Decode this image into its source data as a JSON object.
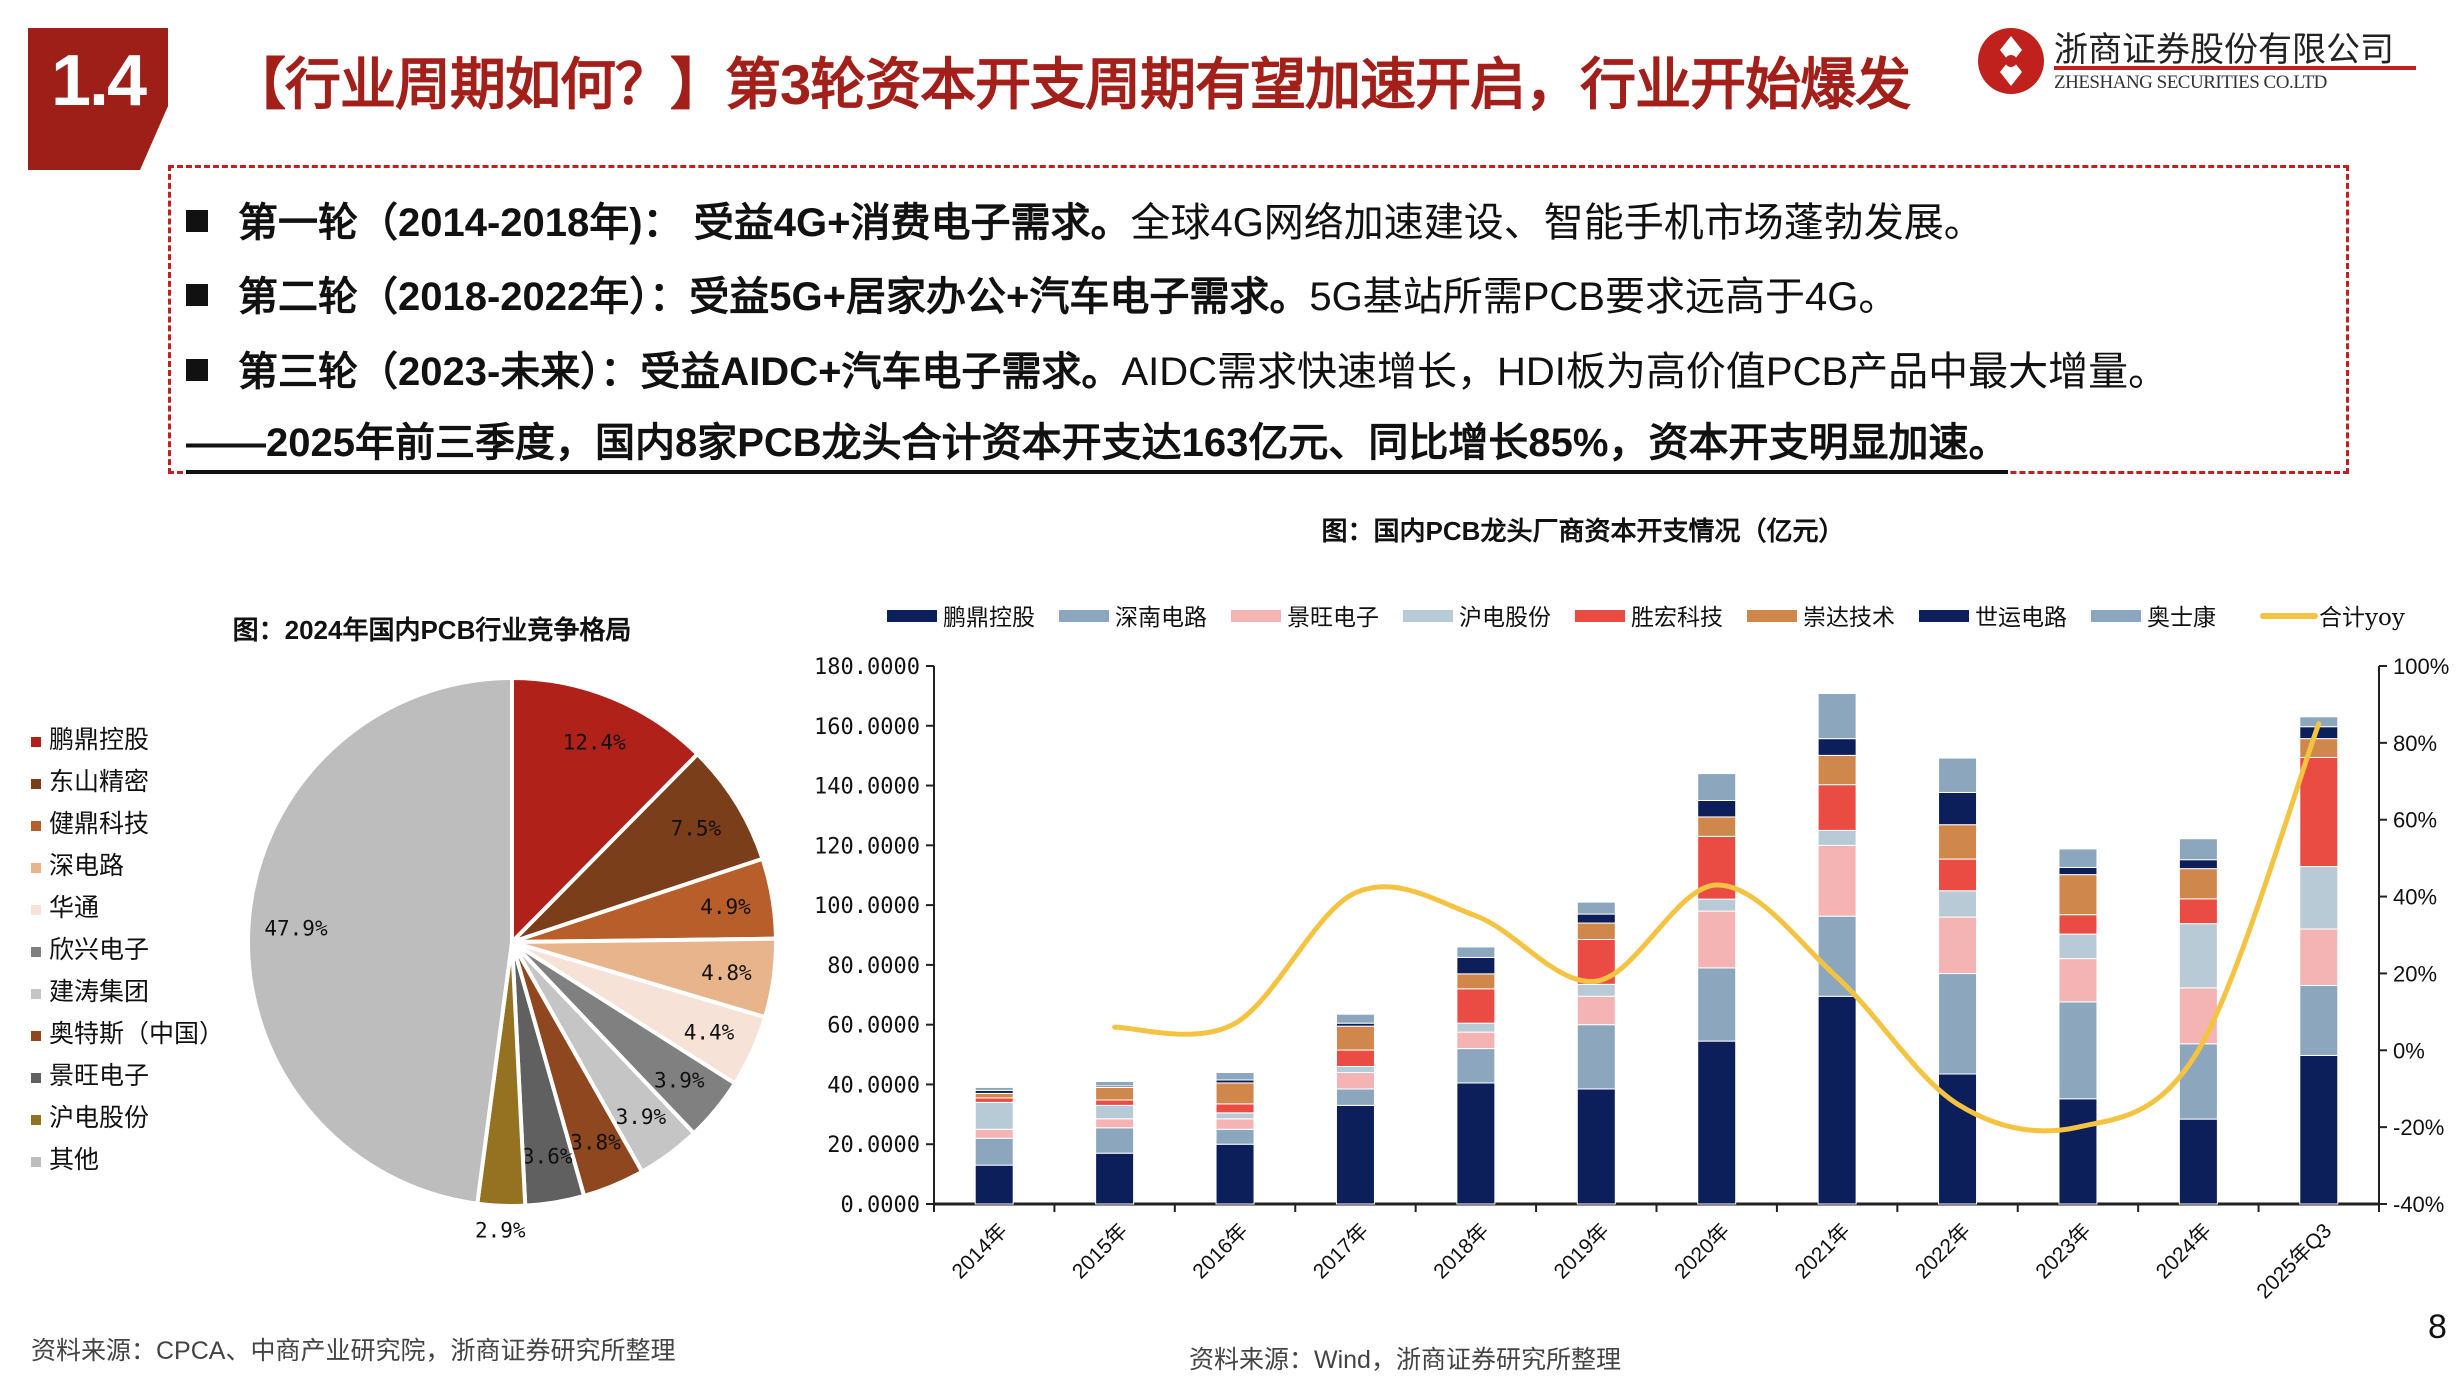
{
  "header": {
    "section_number": "1.4",
    "title": "【行业周期如何？】第3轮资本开支周期有望加速开启，行业开始爆发",
    "logo_cn": "浙商证券股份有限公司",
    "logo_en": "ZHESHANG SECURITIES CO.LTD"
  },
  "bullets": [
    {
      "bold": "第一轮（2014-2018年)：  受益4G+消费电子需求。",
      "text": "全球4G网络加速建设、智能手机市场蓬勃发展。"
    },
    {
      "bold": "第二轮（2018-2022年）：受益5G+居家办公+汽车电子需求。",
      "text": "5G基站所需PCB要求远高于4G。"
    },
    {
      "bold": "第三轮（2023-未来）：受益AIDC+汽车电子需求。",
      "text": "AIDC需求快速增长，HDI板为高价值PCB产品中最大增量。"
    }
  ],
  "summary": "——2025年前三季度，国内8家PCB龙头合计资本开支达163亿元、同比增长85%，资本开支明显加速。",
  "chart_data": [
    {
      "type": "pie",
      "title": "图：2024年国内PCB行业竞争格局",
      "legend_placement": "left",
      "slices": [
        {
          "name": "鹏鼎控股",
          "value": 12.4,
          "label": "12.4%",
          "color": "#b0211a"
        },
        {
          "name": "东山精密",
          "value": 7.5,
          "label": "7.5%",
          "color": "#7a3e1a"
        },
        {
          "name": "健鼎科技",
          "value": 4.9,
          "label": "4.9%",
          "color": "#b85e2b"
        },
        {
          "name": "深电路",
          "value": 4.8,
          "label": "4.8%",
          "color": "#e8b48b"
        },
        {
          "name": "华通",
          "value": 4.4,
          "label": "4.4%",
          "color": "#f6e2d6"
        },
        {
          "name": "欣兴电子",
          "value": 3.9,
          "label": "3.9%",
          "color": "#808080"
        },
        {
          "name": "建涛集团",
          "value": 3.9,
          "label": "3.9%",
          "color": "#c5c5c5"
        },
        {
          "name": "奥特斯（中国）",
          "value": 3.8,
          "label": "3.8%",
          "color": "#8f4720"
        },
        {
          "name": "景旺电子",
          "value": 3.6,
          "label": "3.6%",
          "color": "#606060"
        },
        {
          "name": "沪电股份",
          "value": 2.9,
          "label": "2.9%",
          "color": "#957222"
        },
        {
          "name": "其他",
          "value": 47.9,
          "label": "47.9%",
          "color": "#bdbdbd"
        }
      ]
    },
    {
      "type": "bar",
      "stacked": true,
      "title": "图：国内PCB龙头厂商资本开支情况（亿元）",
      "legend_placement": "top",
      "categories": [
        "2014年",
        "2015年",
        "2016年",
        "2017年",
        "2018年",
        "2019年",
        "2020年",
        "2021年",
        "2022年",
        "2023年",
        "2024年",
        "2025年Q3"
      ],
      "ylim": [
        0,
        180
      ],
      "yticks": [
        "0.0000",
        "20.0000",
        "40.0000",
        "60.0000",
        "80.0000",
        "100.0000",
        "120.0000",
        "140.0000",
        "160.0000",
        "180.0000"
      ],
      "y2lim": [
        -40,
        100
      ],
      "y2ticks": [
        "-40%",
        "-20%",
        "0%",
        "20%",
        "40%",
        "60%",
        "80%",
        "100%"
      ],
      "series": [
        {
          "name": "鹏鼎控股",
          "color": "#0c1f5b",
          "values": [
            13,
            17,
            20,
            33,
            40.5,
            38.5,
            54.5,
            69.5,
            43.5,
            35.2,
            28.4,
            49.7
          ]
        },
        {
          "name": "深南电路",
          "color": "#8ba6bd",
          "values": [
            9,
            8.5,
            5,
            5.5,
            11.5,
            21.5,
            24.5,
            26.8,
            33.6,
            32.4,
            25.2,
            23.4
          ]
        },
        {
          "name": "景旺电子",
          "color": "#f4b4b4",
          "values": [
            3,
            3,
            3.5,
            5.5,
            5.5,
            9.5,
            19,
            23.7,
            18.9,
            14.5,
            18.7,
            18.9
          ]
        },
        {
          "name": "沪电股份",
          "color": "#b9cad7",
          "values": [
            9,
            4.5,
            2,
            2,
            3,
            4,
            4,
            5,
            8.8,
            8.2,
            21.5,
            20.9
          ]
        },
        {
          "name": "胜宏科技",
          "color": "#ea4b42",
          "values": [
            1.5,
            1.8,
            3,
            5.5,
            11.5,
            15,
            21,
            15.3,
            10.6,
            6.5,
            8.3,
            36.5
          ]
        },
        {
          "name": "崇达技术",
          "color": "#cf874c",
          "values": [
            1.5,
            4.2,
            7,
            8,
            5,
            5.5,
            6.5,
            9.8,
            11.5,
            13.4,
            10.1,
            6.3
          ]
        },
        {
          "name": "世运电路",
          "color": "#0c1f5b",
          "values": [
            1,
            0.5,
            1,
            1,
            5.5,
            3,
            5.5,
            5.6,
            10.8,
            2.4,
            3,
            4
          ]
        },
        {
          "name": "奥士康",
          "color": "#8ba6bd",
          "values": [
            1,
            1.5,
            2.5,
            3,
            3.5,
            4,
            9,
            15.1,
            11.5,
            6.2,
            7,
            3.3
          ]
        }
      ],
      "line": {
        "name": "合计yoy",
        "color": "#f5c342",
        "axis": "right",
        "values": [
          null,
          6,
          7,
          41,
          35,
          18,
          43,
          19,
          -14,
          -20,
          0,
          85
        ]
      }
    }
  ],
  "sources": {
    "left": "资料来源：CPCA、中商产业研究院，浙商证券研究所整理",
    "right": "资料来源：Wind，浙商证券研究所整理"
  },
  "page_number": "8"
}
